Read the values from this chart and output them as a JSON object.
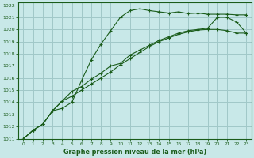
{
  "title": "Graphe pression niveau de la mer (hPa)",
  "bg_color": "#c8e8e8",
  "grid_color": "#a0c8c8",
  "line_color": "#1a5c1a",
  "xlim": [
    -0.5,
    23.5
  ],
  "ylim": [
    1011,
    1022.2
  ],
  "xticks": [
    0,
    1,
    2,
    3,
    4,
    5,
    6,
    7,
    8,
    9,
    10,
    11,
    12,
    13,
    14,
    15,
    16,
    17,
    18,
    19,
    20,
    21,
    22,
    23
  ],
  "yticks": [
    1011,
    1012,
    1013,
    1014,
    1015,
    1016,
    1017,
    1018,
    1019,
    1020,
    1021,
    1022
  ],
  "series": [
    {
      "y": [
        1011.0,
        1011.7,
        1012.2,
        1013.3,
        1013.5,
        1014.0,
        1015.8,
        1017.5,
        1018.8,
        1019.9,
        1021.0,
        1021.55,
        1021.7,
        1021.55,
        1021.45,
        1021.35,
        1021.45,
        1021.3,
        1021.35,
        1021.25,
        1021.25,
        1021.25,
        1021.2,
        1021.2
      ],
      "marker": "+"
    },
    {
      "y": [
        1011.0,
        1011.7,
        1012.2,
        1013.3,
        1014.1,
        1014.9,
        1015.3,
        1015.9,
        1016.4,
        1017.0,
        1017.2,
        1017.9,
        1018.3,
        1018.7,
        1019.1,
        1019.4,
        1019.7,
        1019.9,
        1020.0,
        1020.1,
        1021.0,
        1021.0,
        1020.6,
        1019.7
      ],
      "marker": "+"
    },
    {
      "y": [
        1011.0,
        1011.7,
        1012.2,
        1013.3,
        1014.1,
        1014.5,
        1015.0,
        1015.5,
        1016.0,
        1016.5,
        1017.1,
        1017.6,
        1018.1,
        1018.6,
        1019.0,
        1019.3,
        1019.6,
        1019.8,
        1019.95,
        1020.0,
        1020.0,
        1019.9,
        1019.7,
        1019.7
      ],
      "marker": "+"
    }
  ]
}
